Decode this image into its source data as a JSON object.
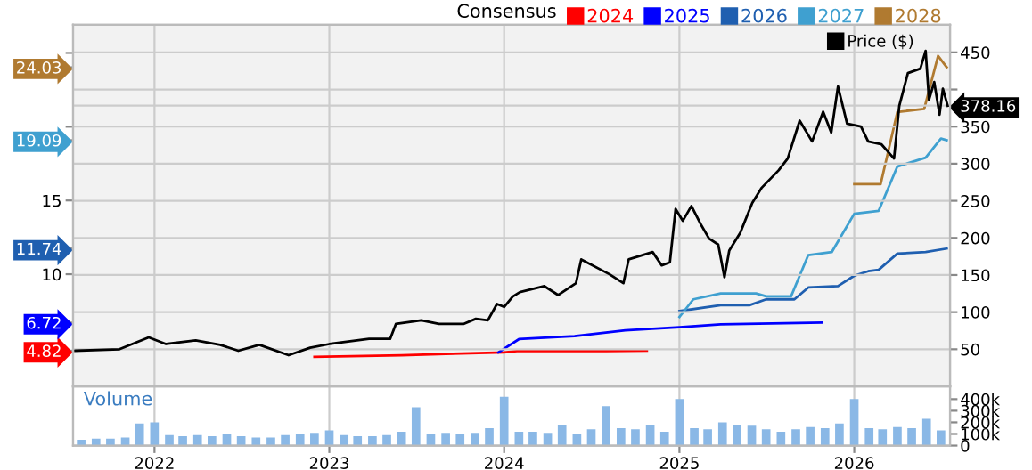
{
  "chart_data": [
    {
      "type": "line",
      "legend_title": "Consensus",
      "legend": "top",
      "grid": true,
      "tick_labels": "y",
      "xlim": [
        "2021-07-15",
        "2026-07-20"
      ],
      "xticks": [
        {
          "value": "2022-01-01",
          "label": null
        },
        {
          "value": "2023-01-01",
          "label": null
        },
        {
          "value": "2024-01-01",
          "label": null
        },
        {
          "value": "2025-01-01",
          "label": null
        },
        {
          "value": "2026-01-01",
          "label": null
        }
      ],
      "ylim": [
        2.4,
        26.9
      ],
      "yticks": [
        {
          "value": 4.82,
          "label": "4.82"
        },
        {
          "value": 6.72,
          "label": "6.72"
        },
        10,
        {
          "value": 11.74,
          "label": "11.74"
        },
        15,
        {
          "value": 19.09,
          "label": "19.09"
        },
        {
          "value": 20,
          "label": null
        },
        {
          "value": 24.03,
          "label": "24.03"
        },
        {
          "value": 25,
          "label": null
        }
      ],
      "y2lim": [
        0,
        487
      ],
      "y2ticks": [
        50,
        100,
        150,
        200,
        250,
        300,
        350,
        {
          "value": 378.16,
          "label": "378.16"
        },
        {
          "value": 400,
          "label": null
        },
        450
      ],
      "series": [
        {
          "name": "2024",
          "color": "#ff0000",
          "x": [
            "2022-12-01",
            "2023-06-01",
            "2023-09-01",
            "2024-01-01",
            "2024-02-01",
            "2024-06-01",
            "2024-08-01",
            "2024-10-25"
          ],
          "values": [
            4.4,
            4.5,
            4.6,
            4.7,
            4.8,
            4.8,
            4.8,
            4.82
          ]
        },
        {
          "name": "2025",
          "color": "#0000ff",
          "x": [
            "2023-12-20",
            "2024-02-01",
            "2024-05-27",
            "2024-09-10",
            "2025-01-01",
            "2025-03-28",
            "2025-10-25"
          ],
          "values": [
            4.7,
            5.6,
            5.8,
            6.2,
            6.4,
            6.6,
            6.72
          ]
        },
        {
          "name": "2026",
          "color": "#1f5fb0",
          "x": [
            "2025-01-01",
            "2025-03-28",
            "2025-05-27",
            "2025-07-01",
            "2025-08-29",
            "2025-09-27",
            "2025-11-28",
            "2026-01-01",
            "2026-01-30",
            "2026-02-21",
            "2026-04-01",
            "2026-05-30",
            "2026-07-13"
          ],
          "values": [
            7.5,
            7.9,
            7.9,
            8.3,
            8.3,
            9.1,
            9.2,
            9.9,
            10.2,
            10.3,
            11.4,
            11.5,
            11.74
          ]
        },
        {
          "name": "2027",
          "color": "#3fa0d0",
          "x": [
            "2025-01-01",
            "2025-01-30",
            "2025-03-28",
            "2025-06-10",
            "2025-07-01",
            "2025-08-22",
            "2025-09-27",
            "2025-11-15",
            "2026-01-01",
            "2026-02-21",
            "2026-04-01",
            "2026-05-30",
            "2026-07-01",
            "2026-07-13"
          ],
          "values": [
            7.1,
            8.3,
            8.7,
            8.7,
            8.5,
            8.5,
            11.3,
            11.5,
            14.1,
            14.3,
            17.3,
            17.9,
            19.2,
            19.09
          ]
        },
        {
          "name": "2028",
          "color": "#b07a30",
          "x": [
            "2026-01-01",
            "2026-02-25",
            "2026-04-01",
            "2026-05-27",
            "2026-06-25",
            "2026-07-13"
          ],
          "values": [
            16.1,
            16.1,
            21.0,
            21.2,
            24.8,
            24.03
          ]
        },
        {
          "name": "Price ($)",
          "color": "#000000",
          "axis": "y2",
          "x": [
            "2021-07-20",
            "2021-10-20",
            "2021-12-20",
            "2022-01-25",
            "2022-03-28",
            "2022-05-18",
            "2022-06-25",
            "2022-08-08",
            "2022-10-08",
            "2022-11-22",
            "2023-01-01",
            "2023-03-25",
            "2023-05-08",
            "2023-05-20",
            "2023-07-12",
            "2023-08-18",
            "2023-10-08",
            "2023-11-03",
            "2023-11-28",
            "2023-12-17",
            "2024-01-01",
            "2024-01-19",
            "2024-02-03",
            "2024-03-25",
            "2024-04-23",
            "2024-05-30",
            "2024-06-10",
            "2024-08-08",
            "2024-09-06",
            "2024-09-17",
            "2024-11-06",
            "2024-11-25",
            "2024-12-12",
            "2024-12-24",
            "2025-01-08",
            "2025-01-26",
            "2025-02-14",
            "2025-03-04",
            "2025-03-23",
            "2025-04-05",
            "2025-04-15",
            "2025-05-08",
            "2025-06-02",
            "2025-06-21",
            "2025-07-27",
            "2025-08-15",
            "2025-09-09",
            "2025-10-05",
            "2025-10-28",
            "2025-11-14",
            "2025-11-28",
            "2025-12-17",
            "2026-01-15",
            "2026-01-30",
            "2026-02-27",
            "2026-03-25",
            "2026-04-05",
            "2026-04-23",
            "2026-05-19",
            "2026-05-30",
            "2026-06-06",
            "2026-06-17",
            "2026-06-28",
            "2026-07-05",
            "2026-07-15"
          ],
          "values": [
            48,
            50,
            66,
            57,
            62,
            56,
            48,
            56,
            42,
            52,
            57,
            64,
            64,
            84,
            89,
            84,
            84,
            91,
            89,
            111,
            107,
            121,
            127,
            135,
            123,
            139,
            171,
            151,
            139,
            171,
            181,
            163,
            167,
            239,
            223,
            243,
            219,
            199,
            191,
            147,
            183,
            207,
            247,
            267,
            291,
            307,
            358,
            330,
            370,
            342,
            404,
            354,
            350,
            330,
            326,
            307,
            378,
            422,
            428,
            452,
            386,
            410,
            366,
            401,
            378.16
          ]
        }
      ]
    },
    {
      "type": "bar",
      "title": "Volume",
      "grid": "x",
      "xlim": [
        "2021-07-15",
        "2026-07-20"
      ],
      "xticks": [
        {
          "value": "2022-01-01",
          "label": "2022"
        },
        {
          "value": "2023-01-01",
          "label": "2023"
        },
        {
          "value": "2024-01-01",
          "label": "2024"
        },
        {
          "value": "2025-01-01",
          "label": "2025"
        },
        {
          "value": "2026-01-01",
          "label": "2026"
        }
      ],
      "y2lim": [
        0,
        510000
      ],
      "y2ticks": [
        0,
        {
          "value": 100000,
          "label": "100k"
        },
        {
          "value": 200000,
          "label": "200k"
        },
        {
          "value": 300000,
          "label": "300k"
        },
        {
          "value": 400000,
          "label": "400k"
        }
      ],
      "series": [
        {
          "color": "#8ab8e6",
          "axis": "y2",
          "x": [
            "2021-08-01",
            "2021-09-01",
            "2021-10-01",
            "2021-11-01",
            "2021-12-01",
            "2022-01-01",
            "2022-02-01",
            "2022-03-01",
            "2022-04-01",
            "2022-05-01",
            "2022-06-01",
            "2022-07-01",
            "2022-08-01",
            "2022-09-01",
            "2022-10-01",
            "2022-11-01",
            "2022-12-01",
            "2023-01-01",
            "2023-02-01",
            "2023-03-01",
            "2023-04-01",
            "2023-05-01",
            "2023-06-01",
            "2023-07-01",
            "2023-08-01",
            "2023-09-01",
            "2023-10-01",
            "2023-11-01",
            "2023-12-01",
            "2024-01-01",
            "2024-02-01",
            "2024-03-01",
            "2024-04-01",
            "2024-05-01",
            "2024-06-01",
            "2024-07-01",
            "2024-08-01",
            "2024-09-01",
            "2024-10-01",
            "2024-11-01",
            "2024-12-01",
            "2025-01-01",
            "2025-02-01",
            "2025-03-01",
            "2025-04-01",
            "2025-05-01",
            "2025-06-01",
            "2025-07-01",
            "2025-08-01",
            "2025-09-01",
            "2025-10-01",
            "2025-11-01",
            "2025-12-01",
            "2026-01-01",
            "2026-02-01",
            "2026-03-01",
            "2026-04-01",
            "2026-05-01",
            "2026-06-01",
            "2026-07-01"
          ],
          "values": [
            50000,
            60000,
            60000,
            70000,
            190000,
            200000,
            90000,
            80000,
            90000,
            80000,
            100000,
            80000,
            70000,
            70000,
            90000,
            100000,
            110000,
            130000,
            90000,
            80000,
            80000,
            90000,
            120000,
            330000,
            100000,
            110000,
            100000,
            110000,
            150000,
            420000,
            120000,
            120000,
            110000,
            180000,
            100000,
            140000,
            340000,
            150000,
            140000,
            180000,
            120000,
            400000,
            150000,
            140000,
            200000,
            180000,
            170000,
            140000,
            120000,
            140000,
            160000,
            150000,
            190000,
            400000,
            150000,
            140000,
            160000,
            150000,
            230000,
            130000
          ]
        }
      ]
    }
  ]
}
